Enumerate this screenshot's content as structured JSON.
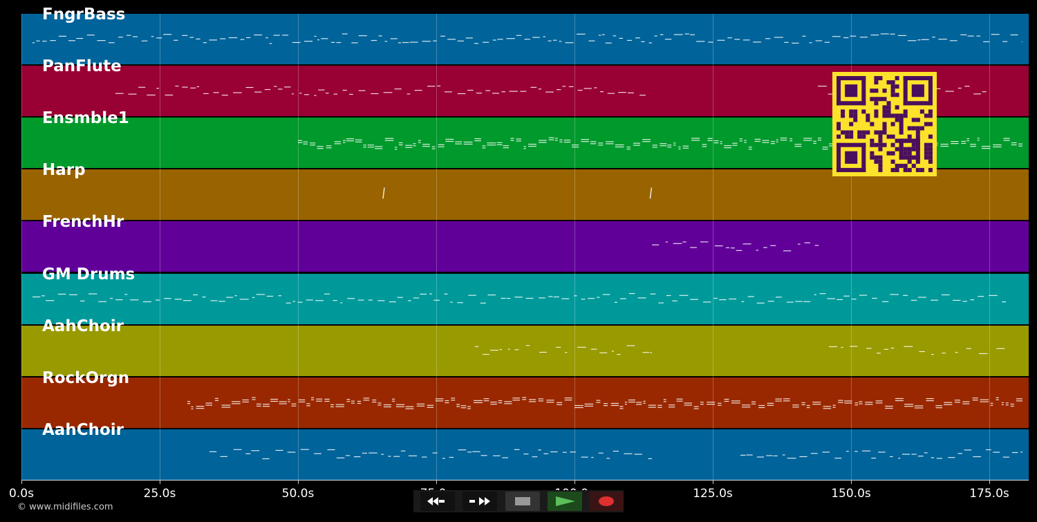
{
  "tracks": [
    {
      "name": "FngrBass",
      "color": "#00639a"
    },
    {
      "name": "PanFlute",
      "color": "#990033"
    },
    {
      "name": "Ensmble1",
      "color": "#00992b"
    },
    {
      "name": "Harp",
      "color": "#996300"
    },
    {
      "name": "FrenchHr",
      "color": "#610099"
    },
    {
      "name": "GM Drums",
      "color": "#00999a"
    },
    {
      "name": "AahChoir",
      "color": "#999900"
    },
    {
      "name": "RockOrgn",
      "color": "#992800"
    },
    {
      "name": "AahChoir",
      "color": "#00639a"
    }
  ],
  "timeline": {
    "ticks": [
      "0.0s",
      "25.0s",
      "50.0s",
      "75.0s",
      "100.0s",
      "125.0s",
      "150.0s",
      "175.0s"
    ],
    "tick_seconds": [
      0,
      25,
      50,
      75,
      100,
      125,
      150,
      175
    ],
    "end_seconds": 182
  },
  "controls": {
    "rewind": "rewind-icon",
    "fast_forward": "fast-forward-icon",
    "stop": "stop-icon",
    "play": "play-icon",
    "record": "record-icon",
    "play_color": "#5cbf5c",
    "record_color": "#e03030"
  },
  "footer": {
    "copyright": "© www.midifiles.com"
  },
  "overlay": {
    "qr_color": "#fde22b",
    "qr_dark": "#4a0f5c"
  }
}
